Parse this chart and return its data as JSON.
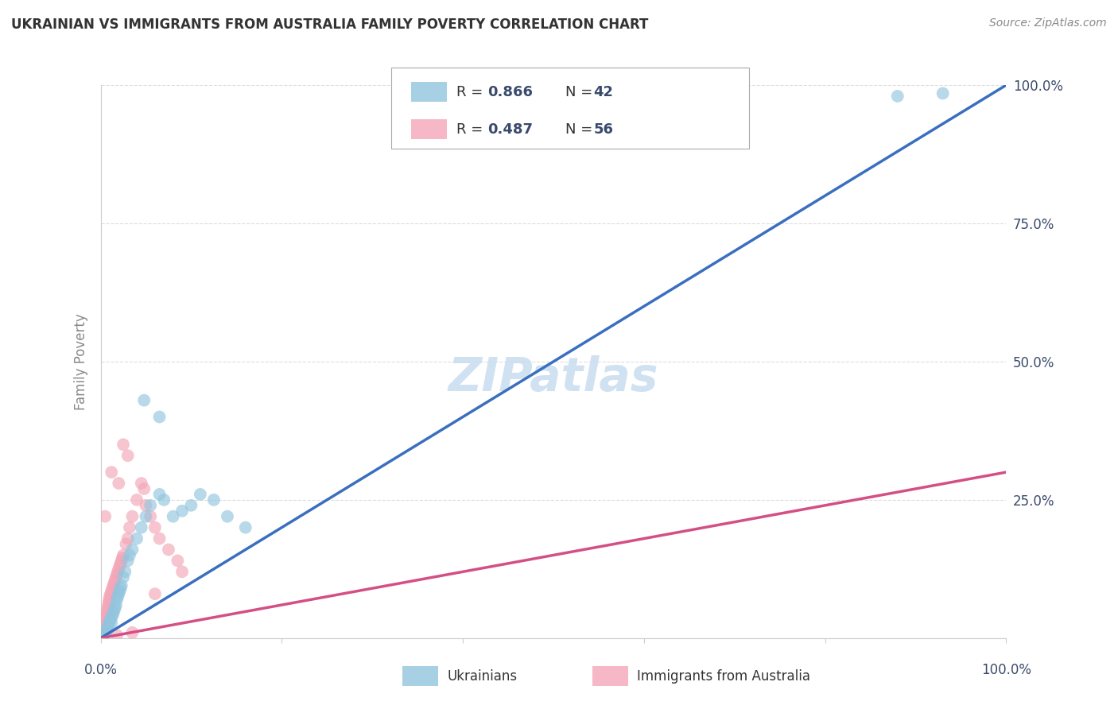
{
  "title": "UKRAINIAN VS IMMIGRANTS FROM AUSTRALIA FAMILY POVERTY CORRELATION CHART",
  "source": "Source: ZipAtlas.com",
  "ylabel": "Family Poverty",
  "legend_blue_R": "0.866",
  "legend_blue_N": "42",
  "legend_pink_R": "0.487",
  "legend_pink_N": "56",
  "legend_blue_label": "Ukrainians",
  "legend_pink_label": "Immigrants from Australia",
  "blue_color": "#92c5de",
  "pink_color": "#f4a6b8",
  "blue_line_color": "#3a6fbf",
  "pink_line_color": "#d44f85",
  "diag_color": "#cccccc",
  "grid_color": "#dddddd",
  "text_color": "#3a4a6b",
  "title_color": "#333333",
  "watermark_color": "#c8ddf0",
  "ylabel_color": "#888888",
  "blue_x": [
    0.3,
    0.5,
    0.6,
    0.7,
    0.8,
    0.9,
    1.0,
    1.1,
    1.2,
    1.3,
    1.4,
    1.5,
    1.6,
    1.7,
    1.8,
    1.9,
    2.0,
    2.1,
    2.2,
    2.3,
    2.5,
    2.7,
    3.0,
    3.2,
    3.5,
    4.0,
    4.5,
    5.0,
    5.5,
    6.5,
    7.0,
    8.0,
    9.0,
    10.0,
    11.0,
    12.5,
    14.0,
    16.0,
    4.8,
    6.5,
    88.0,
    93.0
  ],
  "blue_y": [
    0.5,
    1.0,
    1.2,
    1.5,
    2.0,
    2.5,
    3.0,
    3.5,
    2.8,
    4.0,
    4.5,
    5.0,
    5.5,
    6.0,
    7.0,
    7.5,
    8.0,
    8.5,
    9.0,
    9.5,
    11.0,
    12.0,
    14.0,
    15.0,
    16.0,
    18.0,
    20.0,
    22.0,
    24.0,
    26.0,
    25.0,
    22.0,
    23.0,
    24.0,
    26.0,
    25.0,
    22.0,
    20.0,
    43.0,
    40.0,
    98.0,
    98.5
  ],
  "pink_x": [
    0.1,
    0.15,
    0.2,
    0.25,
    0.3,
    0.35,
    0.4,
    0.45,
    0.5,
    0.55,
    0.6,
    0.65,
    0.7,
    0.75,
    0.8,
    0.85,
    0.9,
    0.95,
    1.0,
    1.1,
    1.2,
    1.3,
    1.4,
    1.5,
    1.6,
    1.7,
    1.8,
    1.9,
    2.0,
    2.1,
    2.2,
    2.3,
    2.4,
    2.5,
    2.8,
    3.0,
    3.2,
    3.5,
    4.0,
    4.5,
    5.0,
    5.5,
    6.0,
    6.5,
    7.5,
    8.5,
    9.0,
    0.5,
    1.2,
    2.0,
    3.0,
    4.8,
    6.0,
    1.8,
    3.5,
    2.5
  ],
  "pink_y": [
    0.3,
    0.5,
    0.8,
    1.0,
    1.2,
    1.5,
    1.8,
    2.0,
    2.5,
    3.0,
    3.5,
    4.0,
    4.5,
    5.0,
    5.5,
    6.0,
    6.5,
    7.0,
    7.5,
    8.0,
    8.5,
    9.0,
    9.5,
    10.0,
    10.5,
    11.0,
    11.5,
    12.0,
    12.5,
    13.0,
    13.5,
    14.0,
    14.5,
    15.0,
    17.0,
    18.0,
    20.0,
    22.0,
    25.0,
    28.0,
    24.0,
    22.0,
    20.0,
    18.0,
    16.0,
    14.0,
    12.0,
    22.0,
    30.0,
    28.0,
    33.0,
    27.0,
    8.0,
    0.5,
    1.0,
    35.0
  ],
  "xlim": [
    0,
    100
  ],
  "ylim": [
    0,
    100
  ],
  "xticks": [
    0,
    20,
    40,
    60,
    80,
    100
  ],
  "yticks": [
    0,
    25,
    50,
    75,
    100
  ],
  "ytick_labels": [
    "",
    "25.0%",
    "50.0%",
    "75.0%",
    "100.0%"
  ],
  "blue_line_x": [
    0,
    100
  ],
  "blue_line_y": [
    0,
    100
  ],
  "pink_line_x": [
    0,
    100
  ],
  "pink_line_y": [
    0,
    30
  ]
}
